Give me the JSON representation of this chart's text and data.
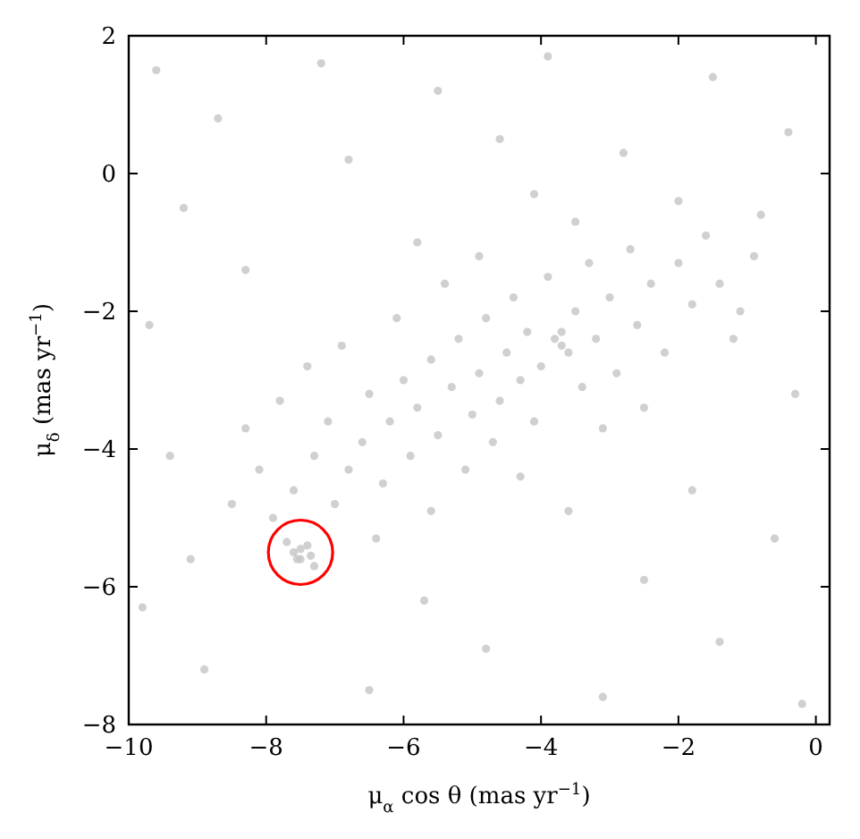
{
  "chart_data": {
    "type": "scatter",
    "xlabel": "μ$_{α}$ cos θ (mas yr$^{−1}$)",
    "ylabel": "μ$_{δ}$ (mas yr$^{−1}$)",
    "xlim": [
      -10,
      0.2
    ],
    "ylim": [
      -8,
      2
    ],
    "xticks": [
      {
        "value": -10,
        "label": "−10"
      },
      {
        "value": -8,
        "label": "−8"
      },
      {
        "value": -6,
        "label": "−6"
      },
      {
        "value": -4,
        "label": "−4"
      },
      {
        "value": -2,
        "label": "−2"
      },
      0
    ],
    "yticks": [
      {
        "value": -8,
        "label": "−8"
      },
      {
        "value": -6,
        "label": "−6"
      },
      {
        "value": -4,
        "label": "−4"
      },
      {
        "value": -2,
        "label": "−2"
      },
      0,
      2
    ],
    "grid": false,
    "marker": "circle",
    "series": [
      {
        "color": "#c4c4c4",
        "x": [
          -9.6,
          -8.7,
          -7.2,
          -5.5,
          -3.9,
          -1.5,
          -0.4,
          -9.2,
          -6.8,
          -4.6,
          -2.8,
          -0.8,
          -9.7,
          -8.3,
          -1.2,
          -0.3,
          -9.4,
          -1.8,
          -0.6,
          -9.8,
          -8.9,
          -6.5,
          -4.8,
          -3.1,
          -1.4,
          -0.2,
          -5.7,
          -2.5,
          -9.1,
          -3.6,
          -8.5,
          -8.1,
          -7.9,
          -7.6,
          -7.3,
          -7.1,
          -7.0,
          -6.8,
          -6.6,
          -6.5,
          -6.3,
          -6.2,
          -6.0,
          -5.9,
          -5.8,
          -5.6,
          -5.5,
          -5.3,
          -5.2,
          -5.1,
          -5.0,
          -4.9,
          -4.8,
          -4.7,
          -4.6,
          -4.5,
          -4.4,
          -4.3,
          -4.2,
          -4.1,
          -4.0,
          -3.9,
          -3.8,
          -3.7,
          -3.6,
          -3.7,
          -3.5,
          -3.4,
          -3.3,
          -3.2,
          -3.0,
          -2.9,
          -2.7,
          -2.6,
          -2.4,
          -2.2,
          -2.0,
          -1.8,
          -1.6,
          -1.4,
          -1.1,
          -0.9,
          -6.9,
          -6.1,
          -5.4,
          -4.9,
          -7.8,
          -8.3,
          -6.4,
          -5.6,
          -4.3,
          -3.1,
          -2.5,
          -2.0,
          -3.5,
          -4.1,
          -5.8,
          -7.4,
          -7.6,
          -7.5,
          -7.4,
          -7.5,
          -7.55,
          -7.35,
          -7.7,
          -7.3
        ],
        "values": [
          1.5,
          0.8,
          1.6,
          1.2,
          1.7,
          1.4,
          0.6,
          -0.5,
          0.2,
          0.5,
          0.3,
          -0.6,
          -2.2,
          -1.4,
          -2.4,
          -3.2,
          -4.1,
          -4.6,
          -5.3,
          -6.3,
          -7.2,
          -7.5,
          -6.9,
          -7.6,
          -6.8,
          -7.7,
          -6.2,
          -5.9,
          -5.6,
          -4.9,
          -4.8,
          -4.3,
          -5.0,
          -4.6,
          -4.1,
          -3.6,
          -4.8,
          -4.3,
          -3.9,
          -3.2,
          -4.5,
          -3.6,
          -3.0,
          -4.1,
          -3.4,
          -2.7,
          -3.8,
          -3.1,
          -2.4,
          -4.3,
          -3.5,
          -2.9,
          -2.1,
          -3.9,
          -3.3,
          -2.6,
          -1.8,
          -3.0,
          -2.3,
          -3.6,
          -2.8,
          -1.5,
          -2.4,
          -2.5,
          -2.6,
          -2.3,
          -2.0,
          -3.1,
          -1.3,
          -2.4,
          -1.8,
          -2.9,
          -1.1,
          -2.2,
          -1.6,
          -2.6,
          -1.3,
          -1.9,
          -0.9,
          -1.6,
          -2.0,
          -1.2,
          -2.5,
          -2.1,
          -1.6,
          -1.2,
          -3.3,
          -3.7,
          -5.3,
          -4.9,
          -4.4,
          -3.7,
          -3.4,
          -0.4,
          -0.7,
          -0.3,
          -1.0,
          -2.8,
          -5.5,
          -5.6,
          -5.4,
          -5.45,
          -5.6,
          -5.55,
          -5.35,
          -5.7
        ]
      }
    ]
  }
}
